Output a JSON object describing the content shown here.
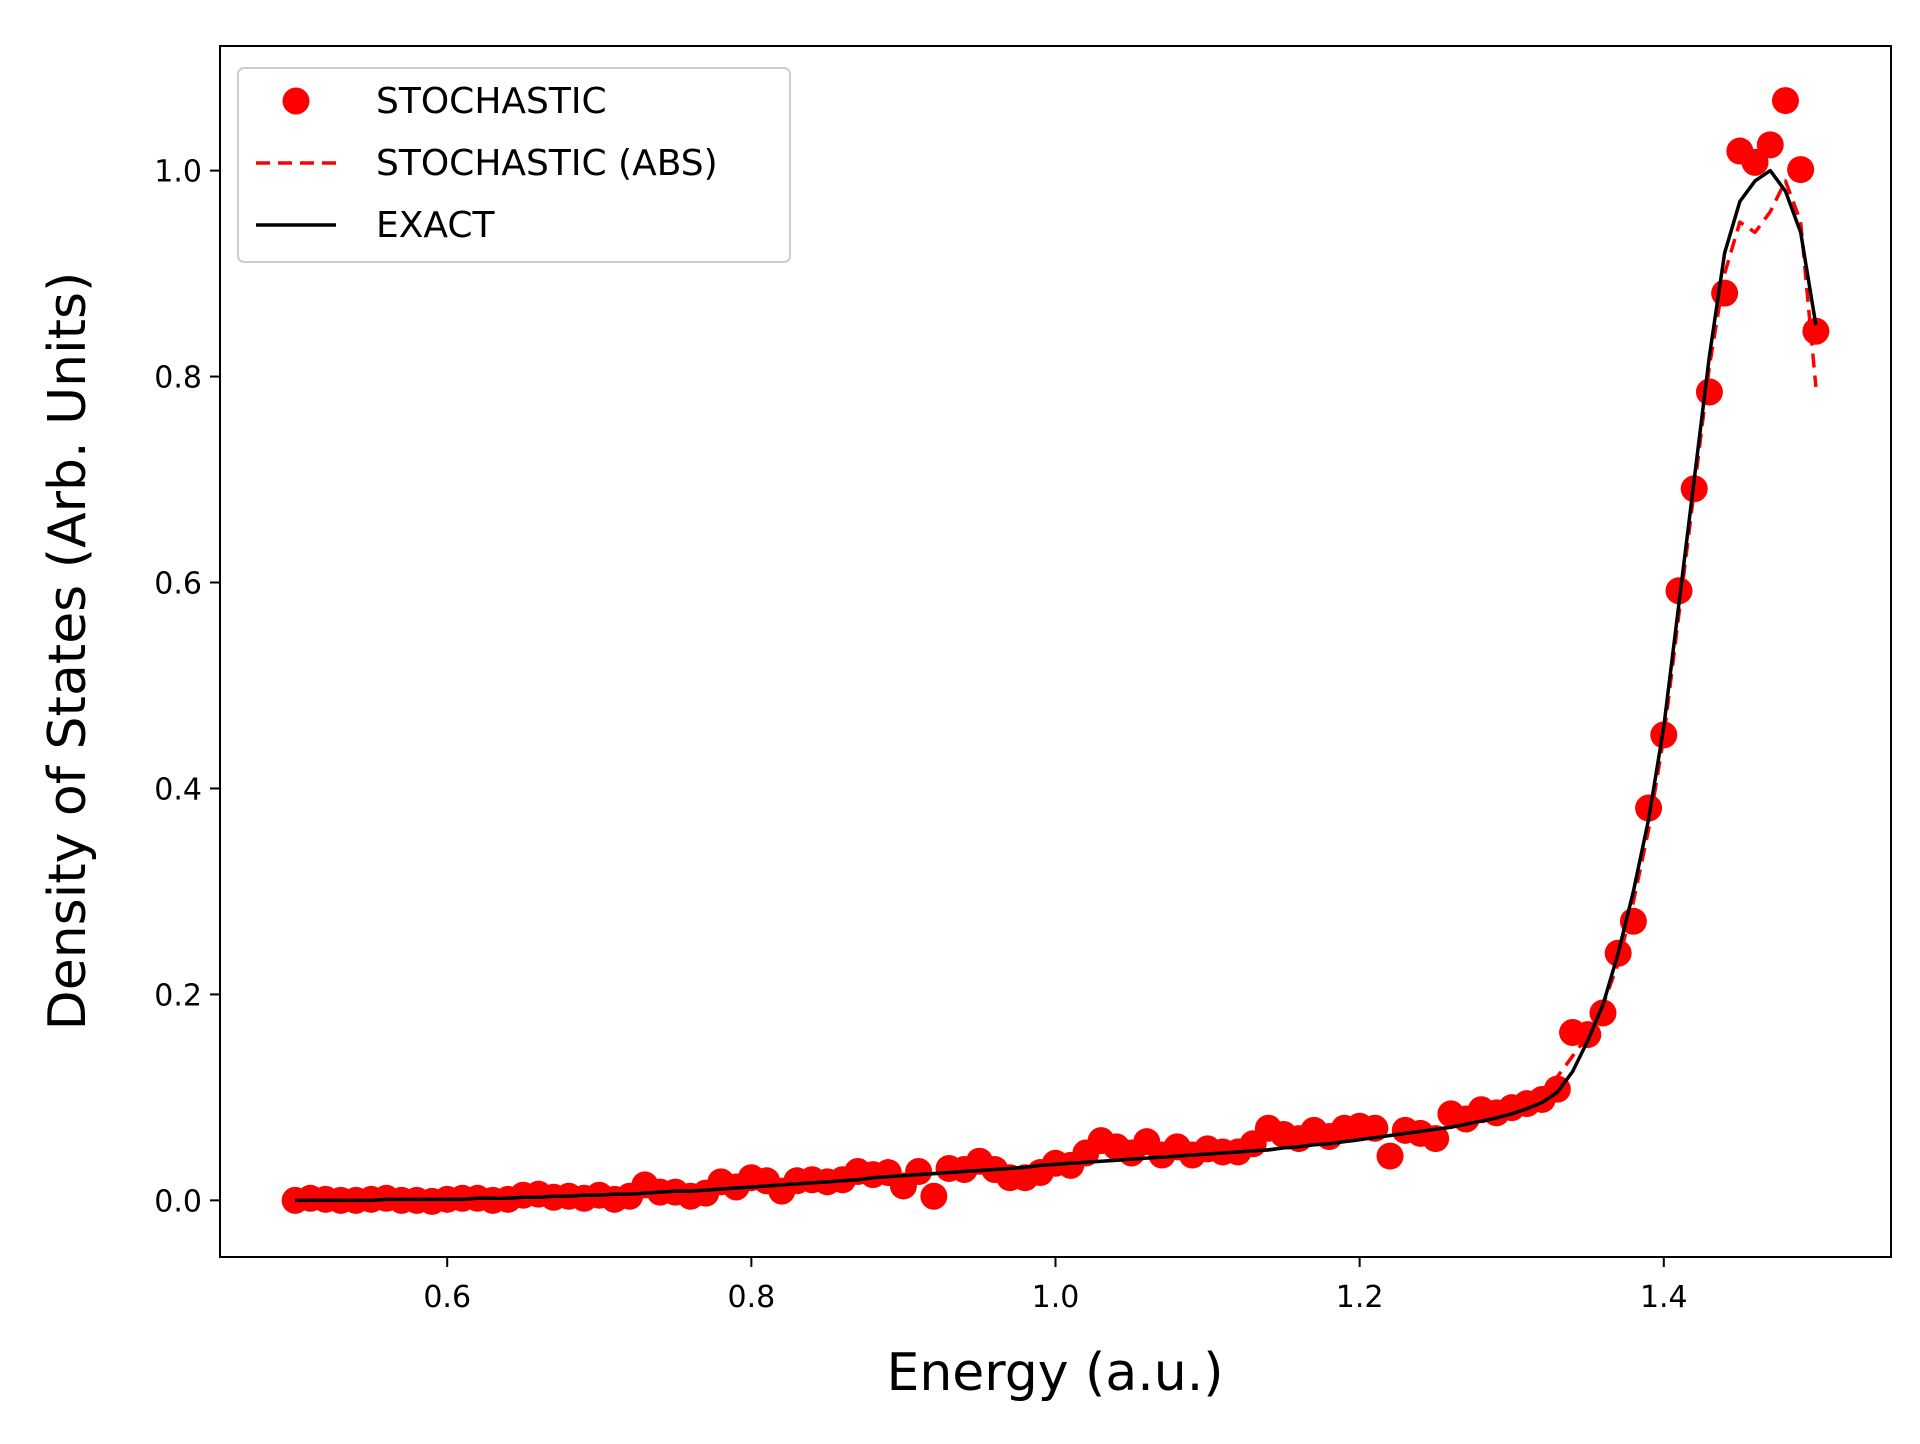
{
  "chart_data": {
    "type": "line",
    "xlabel": "Energy (a.u.)",
    "ylabel": "Density of States (Arb. Units)",
    "x": [
      0.5,
      0.51,
      0.52,
      0.53,
      0.54,
      0.55,
      0.56,
      0.57,
      0.58,
      0.59,
      0.6,
      0.61,
      0.62,
      0.63,
      0.64,
      0.65,
      0.66,
      0.67,
      0.68,
      0.69,
      0.7,
      0.71,
      0.72,
      0.73,
      0.74,
      0.75,
      0.76,
      0.77,
      0.78,
      0.79,
      0.8,
      0.81,
      0.82,
      0.83,
      0.84,
      0.85,
      0.86,
      0.87,
      0.88,
      0.89,
      0.9,
      0.91,
      0.92,
      0.93,
      0.94,
      0.95,
      0.96,
      0.97,
      0.98,
      0.99,
      1,
      1.01,
      1.02,
      1.03,
      1.04,
      1.05,
      1.06,
      1.07,
      1.08,
      1.09,
      1.1,
      1.11,
      1.12,
      1.13,
      1.14,
      1.15,
      1.16,
      1.17,
      1.18,
      1.19,
      1.2,
      1.21,
      1.22,
      1.23,
      1.24,
      1.25,
      1.26,
      1.27,
      1.28,
      1.29,
      1.3,
      1.31,
      1.32,
      1.33,
      1.34,
      1.35,
      1.36,
      1.37,
      1.38,
      1.39,
      1.4,
      1.41,
      1.42,
      1.43,
      1.44,
      1.45,
      1.46,
      1.47,
      1.48,
      1.49,
      1.5
    ],
    "series": [
      {
        "name": "STOCHASTIC",
        "color": "#ff0000",
        "style": "markers",
        "values": [
          0.0,
          0.002,
          0.001,
          0.0,
          0.0,
          0.001,
          0.002,
          0.0,
          0.0,
          -0.001,
          0.001,
          0.002,
          0.002,
          0.0,
          0.001,
          0.005,
          0.006,
          0.003,
          0.004,
          0.002,
          0.005,
          0.001,
          0.004,
          0.015,
          0.008,
          0.008,
          0.004,
          0.007,
          0.018,
          0.013,
          0.022,
          0.019,
          0.009,
          0.019,
          0.02,
          0.018,
          0.02,
          0.028,
          0.025,
          0.027,
          0.014,
          0.028,
          0.004,
          0.031,
          0.03,
          0.038,
          0.03,
          0.022,
          0.022,
          0.027,
          0.036,
          0.034,
          0.046,
          0.058,
          0.052,
          0.046,
          0.057,
          0.044,
          0.052,
          0.044,
          0.05,
          0.047,
          0.047,
          0.055,
          0.07,
          0.064,
          0.06,
          0.068,
          0.062,
          0.07,
          0.072,
          0.07,
          0.043,
          0.068,
          0.065,
          0.06,
          0.084,
          0.079,
          0.088,
          0.085,
          0.09,
          0.094,
          0.098,
          0.108,
          0.163,
          0.161,
          0.182,
          0.24,
          0.271,
          0.381,
          0.452,
          0.592,
          0.691,
          0.785,
          0.881,
          1.019,
          1.008,
          1.025,
          1.068,
          1.001,
          0.844
        ]
      },
      {
        "name": "STOCHASTIC (ABS)",
        "color": "#ff0000",
        "style": "dashed",
        "values": [
          0.0,
          0.0,
          0.0,
          0.0,
          0.0,
          0.0,
          0.001,
          0.001,
          0.001,
          0.001,
          0.001,
          0.001,
          0.002,
          0.002,
          0.002,
          0.003,
          0.003,
          0.004,
          0.004,
          0.005,
          0.005,
          0.006,
          0.006,
          0.007,
          0.008,
          0.009,
          0.009,
          0.01,
          0.011,
          0.012,
          0.013,
          0.014,
          0.015,
          0.016,
          0.017,
          0.018,
          0.019,
          0.02,
          0.022,
          0.023,
          0.024,
          0.025,
          0.026,
          0.027,
          0.028,
          0.029,
          0.03,
          0.031,
          0.032,
          0.034,
          0.035,
          0.036,
          0.037,
          0.038,
          0.039,
          0.04,
          0.041,
          0.042,
          0.043,
          0.044,
          0.045,
          0.046,
          0.047,
          0.048,
          0.049,
          0.051,
          0.052,
          0.054,
          0.055,
          0.057,
          0.059,
          0.061,
          0.063,
          0.065,
          0.067,
          0.069,
          0.071,
          0.074,
          0.077,
          0.08,
          0.084,
          0.089,
          0.095,
          0.12,
          0.14,
          0.16,
          0.19,
          0.23,
          0.29,
          0.36,
          0.45,
          0.57,
          0.69,
          0.81,
          0.9,
          0.95,
          0.94,
          0.96,
          0.99,
          0.95,
          0.79
        ]
      },
      {
        "name": "EXACT",
        "color": "#000000",
        "style": "solid",
        "values": [
          0.0,
          0.0,
          0.0,
          0.0,
          0.0,
          0.0,
          0.001,
          0.001,
          0.001,
          0.001,
          0.001,
          0.001,
          0.002,
          0.002,
          0.002,
          0.003,
          0.003,
          0.004,
          0.004,
          0.005,
          0.005,
          0.006,
          0.006,
          0.007,
          0.008,
          0.009,
          0.009,
          0.01,
          0.011,
          0.012,
          0.013,
          0.014,
          0.015,
          0.016,
          0.017,
          0.018,
          0.019,
          0.02,
          0.022,
          0.023,
          0.024,
          0.025,
          0.026,
          0.027,
          0.028,
          0.029,
          0.03,
          0.031,
          0.032,
          0.034,
          0.035,
          0.036,
          0.037,
          0.038,
          0.039,
          0.04,
          0.041,
          0.042,
          0.043,
          0.044,
          0.045,
          0.046,
          0.047,
          0.048,
          0.049,
          0.051,
          0.052,
          0.054,
          0.055,
          0.057,
          0.059,
          0.061,
          0.063,
          0.065,
          0.067,
          0.069,
          0.071,
          0.074,
          0.077,
          0.08,
          0.084,
          0.089,
          0.095,
          0.105,
          0.125,
          0.155,
          0.19,
          0.24,
          0.3,
          0.37,
          0.46,
          0.58,
          0.7,
          0.82,
          0.92,
          0.97,
          0.99,
          1.0,
          0.98,
          0.94,
          0.85
        ]
      }
    ],
    "xlim": [
      0.4506,
      1.5494
    ],
    "ylim": [
      -0.055,
      1.121
    ],
    "xticks": [
      0.6,
      0.8,
      {
        "value": 1,
        "label": "1.0"
      },
      1.2,
      1.4
    ],
    "yticks": [
      {
        "value": 0,
        "label": "0.0"
      },
      0.2,
      0.4,
      0.6,
      0.8,
      {
        "value": 1,
        "label": "1.0"
      }
    ],
    "legend": "upper left"
  }
}
